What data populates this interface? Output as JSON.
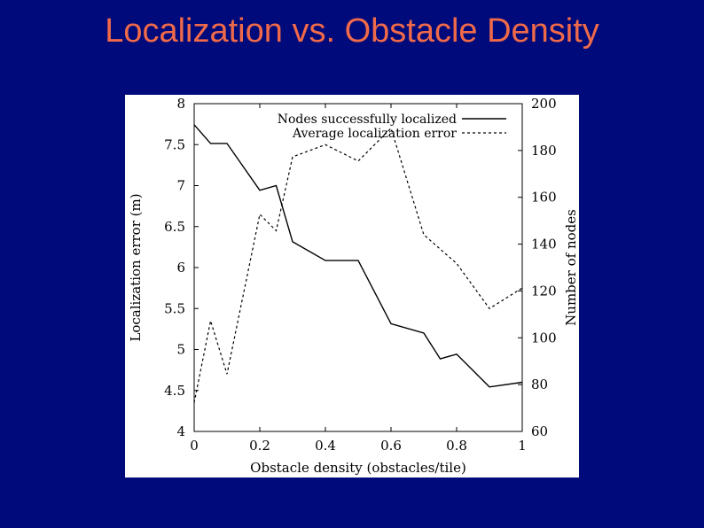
{
  "slide": {
    "title": "Localization vs. Obstacle Density"
  },
  "chart_data": {
    "type": "line",
    "xlabel": "Obstacle density (obstacles/tile)",
    "ylabel_left": "Localization error (m)",
    "ylabel_right": "Number of nodes",
    "xlim": [
      0,
      1
    ],
    "ylim_left": [
      4,
      8
    ],
    "ylim_right": [
      60,
      200
    ],
    "x_ticks": [
      "0",
      "0.2",
      "0.4",
      "0.6",
      "0.8",
      "1"
    ],
    "y_left_ticks": [
      "4",
      "4.5",
      "5",
      "5.5",
      "6",
      "6.5",
      "7",
      "7.5",
      "8"
    ],
    "y_right_ticks": [
      "60",
      "80",
      "100",
      "120",
      "140",
      "160",
      "180",
      "200"
    ],
    "legend": [
      "Nodes successfully localized",
      "Average localization error"
    ],
    "series": [
      {
        "name": "Nodes successfully localized",
        "axis": "right",
        "style": "solid",
        "x": [
          0,
          0.05,
          0.1,
          0.2,
          0.25,
          0.3,
          0.4,
          0.5,
          0.6,
          0.7,
          0.75,
          0.8,
          0.9,
          1.0
        ],
        "y": [
          191,
          183,
          183,
          163,
          165,
          141,
          133,
          133,
          106,
          102,
          91,
          93,
          79,
          81
        ]
      },
      {
        "name": "Average localization error",
        "axis": "left",
        "style": "dashed",
        "x": [
          0,
          0.05,
          0.1,
          0.2,
          0.25,
          0.3,
          0.4,
          0.5,
          0.6,
          0.7,
          0.8,
          0.9,
          1.0
        ],
        "y": [
          4.35,
          5.35,
          4.7,
          6.65,
          6.45,
          7.35,
          7.5,
          7.3,
          7.7,
          6.4,
          6.05,
          5.5,
          5.75
        ]
      }
    ]
  }
}
